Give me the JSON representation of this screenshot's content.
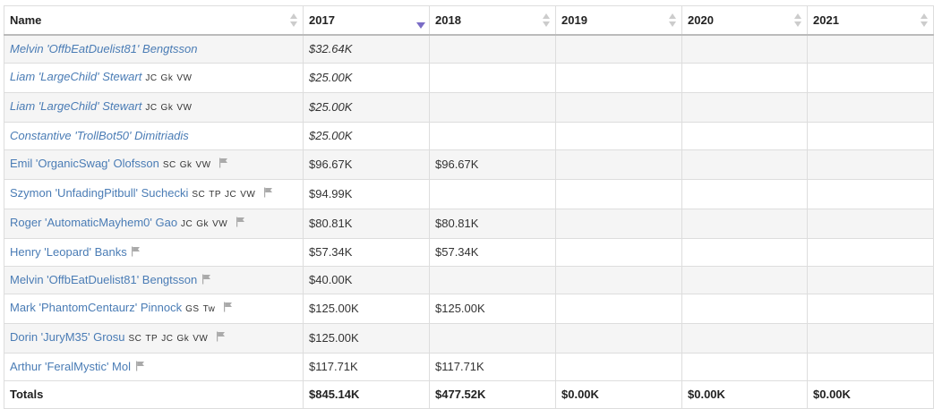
{
  "columns": [
    "Name",
    "2017",
    "2018",
    "2019",
    "2020",
    "2021"
  ],
  "sorted_column": "2017",
  "rows": [
    {
      "name": "Melvin 'OffbEatDuelist81' Bengtsson",
      "italic": true,
      "tags": [],
      "flag": false,
      "y2017": "$32.64K",
      "y2018": "",
      "y2019": "",
      "y2020": "",
      "y2021": ""
    },
    {
      "name": "Liam 'LargeChild' Stewart",
      "italic": true,
      "tags": [
        "JC",
        "Gk",
        "VW"
      ],
      "flag": false,
      "y2017": "$25.00K",
      "y2018": "",
      "y2019": "",
      "y2020": "",
      "y2021": ""
    },
    {
      "name": "Liam 'LargeChild' Stewart",
      "italic": true,
      "tags": [
        "JC",
        "Gk",
        "VW"
      ],
      "flag": false,
      "y2017": "$25.00K",
      "y2018": "",
      "y2019": "",
      "y2020": "",
      "y2021": ""
    },
    {
      "name": "Constantive 'TrollBot50' Dimitriadis",
      "italic": true,
      "tags": [],
      "flag": false,
      "y2017": "$25.00K",
      "y2018": "",
      "y2019": "",
      "y2020": "",
      "y2021": ""
    },
    {
      "name": "Emil 'OrganicSwag' Olofsson",
      "italic": false,
      "tags": [
        "SC",
        "Gk",
        "VW"
      ],
      "flag": true,
      "y2017": "$96.67K",
      "y2018": "$96.67K",
      "y2019": "",
      "y2020": "",
      "y2021": ""
    },
    {
      "name": "Szymon 'UnfadingPitbull' Suchecki",
      "italic": false,
      "tags": [
        "SC",
        "TP",
        "JC",
        "VW"
      ],
      "flag": true,
      "y2017": "$94.99K",
      "y2018": "",
      "y2019": "",
      "y2020": "",
      "y2021": ""
    },
    {
      "name": "Roger 'AutomaticMayhem0' Gao",
      "italic": false,
      "tags": [
        "JC",
        "Gk",
        "VW"
      ],
      "flag": true,
      "y2017": "$80.81K",
      "y2018": "$80.81K",
      "y2019": "",
      "y2020": "",
      "y2021": ""
    },
    {
      "name": "Henry 'Leopard' Banks",
      "italic": false,
      "tags": [],
      "flag": true,
      "y2017": "$57.34K",
      "y2018": "$57.34K",
      "y2019": "",
      "y2020": "",
      "y2021": ""
    },
    {
      "name": "Melvin 'OffbEatDuelist81' Bengtsson",
      "italic": false,
      "tags": [],
      "flag": true,
      "y2017": "$40.00K",
      "y2018": "",
      "y2019": "",
      "y2020": "",
      "y2021": ""
    },
    {
      "name": "Mark 'PhantomCentaurz' Pinnock",
      "italic": false,
      "tags": [
        "GS",
        "Tw"
      ],
      "flag": true,
      "y2017": "$125.00K",
      "y2018": "$125.00K",
      "y2019": "",
      "y2020": "",
      "y2021": ""
    },
    {
      "name": "Dorin 'JuryM35' Grosu",
      "italic": false,
      "tags": [
        "SC",
        "TP",
        "JC",
        "Gk",
        "VW"
      ],
      "flag": true,
      "y2017": "$125.00K",
      "y2018": "",
      "y2019": "",
      "y2020": "",
      "y2021": ""
    },
    {
      "name": "Arthur 'FeralMystic' Mol",
      "italic": false,
      "tags": [],
      "flag": true,
      "y2017": "$117.71K",
      "y2018": "$117.71K",
      "y2019": "",
      "y2020": "",
      "y2021": ""
    }
  ],
  "totals": {
    "label": "Totals",
    "y2017": "$845.14K",
    "y2018": "$477.52K",
    "y2019": "$0.00K",
    "y2020": "$0.00K",
    "y2021": "$0.00K"
  },
  "colors": {
    "link": "#4a7cb5",
    "sort_active": "#7a6cc6",
    "flag": "#aaaaaa"
  },
  "icons": {
    "flag": "flag-icon",
    "sort": "sort-arrows-icon"
  }
}
